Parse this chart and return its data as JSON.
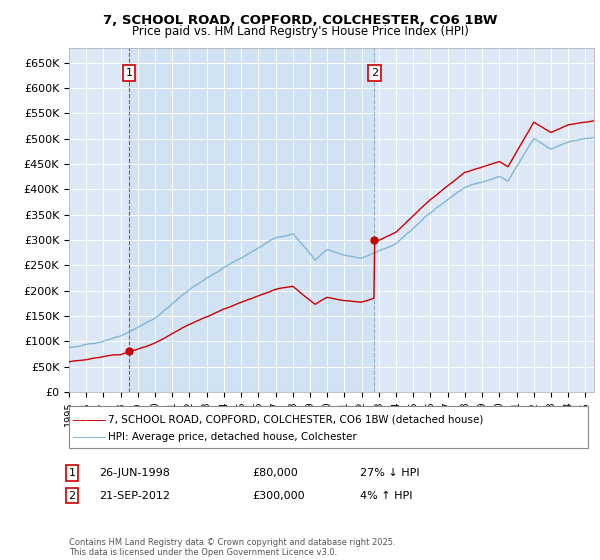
{
  "title_line1": "7, SCHOOL ROAD, COPFORD, COLCHESTER, CO6 1BW",
  "title_line2": "Price paid vs. HM Land Registry's House Price Index (HPI)",
  "ylim": [
    0,
    680000
  ],
  "yticks": [
    0,
    50000,
    100000,
    150000,
    200000,
    250000,
    300000,
    350000,
    400000,
    450000,
    500000,
    550000,
    600000,
    650000
  ],
  "ytick_labels": [
    "£0",
    "£50K",
    "£100K",
    "£150K",
    "£200K",
    "£250K",
    "£300K",
    "£350K",
    "£400K",
    "£450K",
    "£500K",
    "£550K",
    "£600K",
    "£650K"
  ],
  "plot_bg_color": "#dce8f5",
  "grid_color": "#ffffff",
  "sale1_date": 1998.49,
  "sale1_price": 80000,
  "sale2_date": 2012.73,
  "sale2_price": 300000,
  "legend_line1": "7, SCHOOL ROAD, COPFORD, COLCHESTER, CO6 1BW (detached house)",
  "legend_line2": "HPI: Average price, detached house, Colchester",
  "footer": "Contains HM Land Registry data © Crown copyright and database right 2025.\nThis data is licensed under the Open Government Licence v3.0.",
  "red_color": "#cc0000",
  "blue_color": "#7ab0d4",
  "xmin": 1995,
  "xmax": 2025.5
}
